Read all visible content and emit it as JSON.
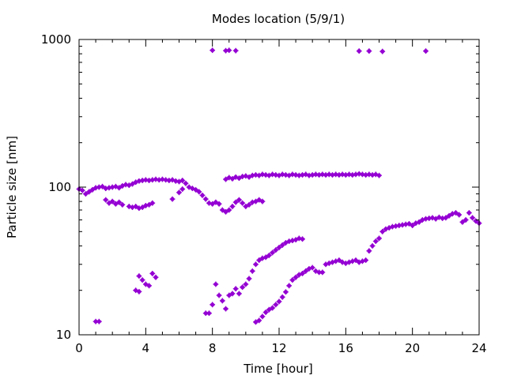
{
  "chart_data": {
    "type": "scatter",
    "title": "Modes location (5/9/1)",
    "xlabel": "Time [hour]",
    "ylabel": "Particle size [nm]",
    "xlim": [
      0,
      24
    ],
    "ylim": [
      10,
      1000
    ],
    "yscale": "log",
    "xticks": [
      0,
      4,
      8,
      12,
      16,
      20,
      24
    ],
    "xtick_labels": [
      "0",
      "4",
      "8",
      "12",
      "16",
      "20",
      "24"
    ],
    "yticks": [
      10,
      100,
      1000
    ],
    "ytick_labels": [
      "10",
      "100",
      "1000"
    ],
    "grid": false,
    "legend": "none",
    "marker_color": "#9400d3",
    "series": [
      {
        "points": [
          [
            0.0,
            97
          ],
          [
            0.2,
            95
          ],
          [
            0.4,
            90
          ],
          [
            0.6,
            93
          ],
          [
            0.8,
            96
          ],
          [
            1.0,
            99
          ],
          [
            1.2,
            100
          ],
          [
            1.4,
            101
          ],
          [
            1.6,
            98
          ],
          [
            1.8,
            99
          ],
          [
            2.0,
            100
          ],
          [
            2.2,
            101
          ],
          [
            2.4,
            99
          ],
          [
            2.6,
            102
          ],
          [
            2.8,
            104
          ],
          [
            3.0,
            103
          ],
          [
            3.2,
            105
          ],
          [
            3.4,
            108
          ],
          [
            3.6,
            110
          ],
          [
            3.8,
            111
          ],
          [
            4.0,
            112
          ],
          [
            4.2,
            111
          ],
          [
            4.4,
            112
          ],
          [
            4.6,
            113
          ],
          [
            4.8,
            112
          ],
          [
            5.0,
            113
          ],
          [
            5.2,
            112
          ],
          [
            5.4,
            111
          ],
          [
            5.6,
            112
          ],
          [
            5.8,
            110
          ],
          [
            6.0,
            109
          ],
          [
            6.2,
            111
          ],
          [
            6.4,
            106
          ],
          [
            6.6,
            100
          ],
          [
            6.8,
            98
          ],
          [
            7.0,
            96
          ],
          [
            7.2,
            93
          ],
          [
            7.4,
            88
          ],
          [
            7.6,
            83
          ],
          [
            7.8,
            78
          ],
          [
            8.0,
            77
          ],
          [
            8.2,
            79
          ],
          [
            8.4,
            77
          ],
          [
            8.8,
            113
          ],
          [
            9.0,
            116
          ],
          [
            9.2,
            114
          ],
          [
            9.4,
            117
          ],
          [
            9.6,
            115
          ],
          [
            9.8,
            118
          ],
          [
            10.0,
            119
          ],
          [
            10.2,
            117
          ],
          [
            10.4,
            120
          ],
          [
            10.6,
            121
          ],
          [
            10.8,
            120
          ],
          [
            11.0,
            122
          ],
          [
            11.2,
            121
          ],
          [
            11.4,
            120
          ],
          [
            11.6,
            122
          ],
          [
            11.8,
            121
          ],
          [
            12.0,
            120
          ],
          [
            12.2,
            122
          ],
          [
            12.4,
            121
          ],
          [
            12.6,
            120
          ],
          [
            12.8,
            122
          ],
          [
            13.0,
            121
          ],
          [
            13.2,
            120
          ],
          [
            13.4,
            121
          ],
          [
            13.6,
            122
          ],
          [
            13.8,
            120
          ],
          [
            14.0,
            121
          ],
          [
            14.2,
            122
          ],
          [
            14.4,
            121
          ],
          [
            14.6,
            122
          ],
          [
            14.8,
            121
          ],
          [
            15.0,
            122
          ],
          [
            15.2,
            121
          ],
          [
            15.4,
            122
          ],
          [
            15.6,
            121
          ],
          [
            15.8,
            122
          ],
          [
            16.0,
            121
          ],
          [
            16.2,
            122
          ],
          [
            16.4,
            121
          ],
          [
            16.6,
            122
          ],
          [
            16.8,
            123
          ],
          [
            17.0,
            122
          ],
          [
            17.2,
            121
          ],
          [
            17.4,
            122
          ],
          [
            17.6,
            121
          ],
          [
            17.8,
            122
          ],
          [
            18.0,
            120
          ]
        ]
      },
      {
        "points": [
          [
            1.6,
            82
          ],
          [
            1.8,
            78
          ],
          [
            2.0,
            80
          ],
          [
            2.2,
            77
          ],
          [
            2.4,
            79
          ],
          [
            2.6,
            76
          ],
          [
            3.0,
            74
          ],
          [
            3.2,
            73
          ],
          [
            3.4,
            74
          ],
          [
            3.6,
            72
          ],
          [
            3.8,
            73
          ],
          [
            4.0,
            75
          ],
          [
            4.2,
            76
          ],
          [
            4.4,
            78
          ],
          [
            5.6,
            83
          ],
          [
            6.0,
            92
          ],
          [
            6.2,
            97
          ],
          [
            8.6,
            70
          ],
          [
            8.8,
            68
          ],
          [
            9.0,
            70
          ],
          [
            9.2,
            74
          ],
          [
            9.4,
            79
          ],
          [
            9.6,
            82
          ],
          [
            9.8,
            78
          ],
          [
            10.0,
            74
          ],
          [
            10.2,
            76
          ],
          [
            10.4,
            79
          ],
          [
            10.6,
            80
          ],
          [
            10.8,
            82
          ],
          [
            11.0,
            80
          ]
        ]
      },
      {
        "points": [
          [
            9.0,
            845
          ],
          [
            9.4,
            840
          ],
          [
            16.8,
            835
          ],
          [
            17.4,
            835
          ],
          [
            18.2,
            830
          ],
          [
            20.8,
            835
          ]
        ]
      },
      {
        "points": [
          [
            8.0,
            845
          ],
          [
            8.8,
            840
          ]
        ]
      },
      {
        "points": [
          [
            1.0,
            12.3
          ],
          [
            1.2,
            12.3
          ],
          [
            3.4,
            20
          ],
          [
            3.6,
            19.6
          ],
          [
            3.6,
            25
          ],
          [
            3.8,
            23.5
          ],
          [
            4.0,
            22
          ],
          [
            4.2,
            21.5
          ],
          [
            4.4,
            26
          ],
          [
            4.6,
            24.5
          ],
          [
            7.6,
            14
          ],
          [
            7.8,
            14
          ],
          [
            8.0,
            16
          ],
          [
            8.2,
            22
          ],
          [
            8.4,
            18.5
          ],
          [
            8.6,
            17
          ],
          [
            8.8,
            15
          ],
          [
            9.0,
            18.5
          ],
          [
            9.2,
            19
          ],
          [
            9.4,
            20.5
          ],
          [
            9.6,
            19
          ],
          [
            9.8,
            21
          ],
          [
            10.0,
            22
          ],
          [
            10.2,
            24
          ],
          [
            10.4,
            27
          ],
          [
            10.6,
            30
          ],
          [
            10.8,
            32
          ],
          [
            11.0,
            33
          ],
          [
            11.2,
            33.5
          ],
          [
            11.4,
            34.5
          ],
          [
            11.6,
            36
          ],
          [
            11.8,
            37.5
          ],
          [
            12.0,
            39
          ],
          [
            12.2,
            40.5
          ],
          [
            12.4,
            42
          ],
          [
            12.6,
            43
          ],
          [
            12.8,
            43.5
          ],
          [
            13.0,
            44
          ],
          [
            13.2,
            45
          ],
          [
            13.4,
            44.5
          ],
          [
            10.6,
            12.2
          ],
          [
            10.8,
            12.5
          ],
          [
            11.0,
            13.3
          ],
          [
            11.2,
            14.2
          ],
          [
            11.4,
            14.8
          ],
          [
            11.6,
            15.2
          ],
          [
            11.8,
            16
          ],
          [
            12.0,
            16.8
          ],
          [
            12.2,
            18
          ],
          [
            12.4,
            19.5
          ],
          [
            12.6,
            21.5
          ],
          [
            12.8,
            23.5
          ],
          [
            13.0,
            24.5
          ],
          [
            13.2,
            25.5
          ],
          [
            13.4,
            26
          ],
          [
            13.6,
            27
          ],
          [
            13.8,
            28
          ],
          [
            14.0,
            28.5
          ],
          [
            14.2,
            27
          ],
          [
            14.4,
            26.5
          ],
          [
            14.6,
            26.5
          ],
          [
            14.8,
            30
          ],
          [
            15.0,
            30.5
          ],
          [
            15.2,
            31
          ],
          [
            15.4,
            31.5
          ],
          [
            15.6,
            32
          ],
          [
            15.8,
            31
          ],
          [
            16.0,
            30.5
          ],
          [
            16.2,
            31
          ],
          [
            16.4,
            31.5
          ],
          [
            16.6,
            32
          ],
          [
            16.8,
            31
          ],
          [
            17.0,
            31.5
          ],
          [
            17.2,
            32
          ],
          [
            17.4,
            37
          ],
          [
            17.6,
            40
          ],
          [
            17.8,
            43
          ],
          [
            18.0,
            45
          ],
          [
            18.2,
            50
          ],
          [
            18.4,
            52
          ],
          [
            18.6,
            53
          ],
          [
            18.8,
            54
          ],
          [
            19.0,
            54.5
          ],
          [
            19.2,
            55
          ],
          [
            19.4,
            55.5
          ],
          [
            19.6,
            56
          ],
          [
            19.8,
            56.5
          ],
          [
            20.0,
            55
          ],
          [
            20.2,
            57
          ],
          [
            20.4,
            58
          ],
          [
            20.6,
            60
          ],
          [
            20.8,
            61
          ],
          [
            21.0,
            61.5
          ],
          [
            21.2,
            62
          ],
          [
            21.4,
            61
          ],
          [
            21.6,
            62.5
          ],
          [
            21.8,
            61.5
          ],
          [
            22.0,
            62
          ],
          [
            22.2,
            64
          ],
          [
            22.4,
            66
          ],
          [
            22.6,
            67
          ],
          [
            22.8,
            65
          ],
          [
            23.0,
            58
          ],
          [
            23.2,
            60
          ],
          [
            23.4,
            67
          ],
          [
            23.6,
            62
          ],
          [
            23.8,
            59
          ],
          [
            24.0,
            57
          ]
        ]
      }
    ]
  }
}
